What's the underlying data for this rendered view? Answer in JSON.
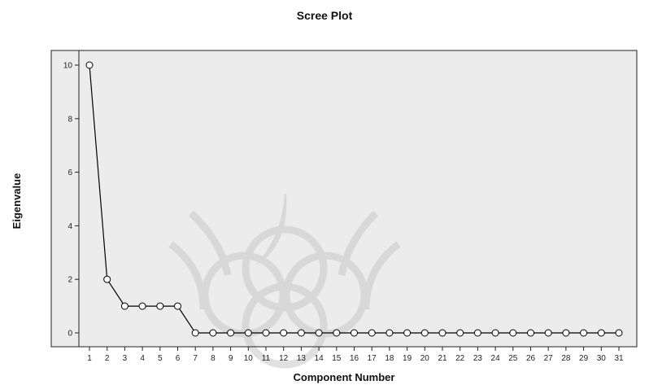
{
  "chart_data": {
    "type": "line",
    "title": "Scree Plot",
    "xlabel": "Component Number",
    "ylabel": "Eigenvalue",
    "x": [
      1,
      2,
      3,
      4,
      5,
      6,
      7,
      8,
      9,
      10,
      11,
      12,
      13,
      14,
      15,
      16,
      17,
      18,
      19,
      20,
      21,
      22,
      23,
      24,
      25,
      26,
      27,
      28,
      29,
      30,
      31
    ],
    "categories": [
      "1",
      "2",
      "3",
      "4",
      "5",
      "6",
      "7",
      "8",
      "9",
      "10",
      "11",
      "12",
      "13",
      "14",
      "15",
      "16",
      "17",
      "18",
      "19",
      "20",
      "21",
      "22",
      "23",
      "24",
      "25",
      "26",
      "27",
      "28",
      "29",
      "30",
      "31"
    ],
    "series": [
      {
        "values": [
          10,
          2,
          1,
          1,
          1,
          1,
          0,
          0,
          0,
          0,
          0,
          0,
          0,
          0,
          0,
          0,
          0,
          0,
          0,
          0,
          0,
          0,
          0,
          0,
          0,
          0,
          0,
          0,
          0,
          0,
          0
        ]
      }
    ],
    "ylim": [
      0,
      10
    ],
    "yticks": [
      0,
      2,
      4,
      6,
      8,
      10
    ],
    "ytick_labels": [
      "0",
      "2",
      "4",
      "6",
      "8",
      "10"
    ],
    "grid": false,
    "legend": "none",
    "marker": "open-circle"
  },
  "colors": {
    "plot_background": "#ececec",
    "line": "#000000",
    "marker_stroke": "#000000",
    "marker_fill": "#ffffff",
    "watermark": "#c8c8c8"
  }
}
